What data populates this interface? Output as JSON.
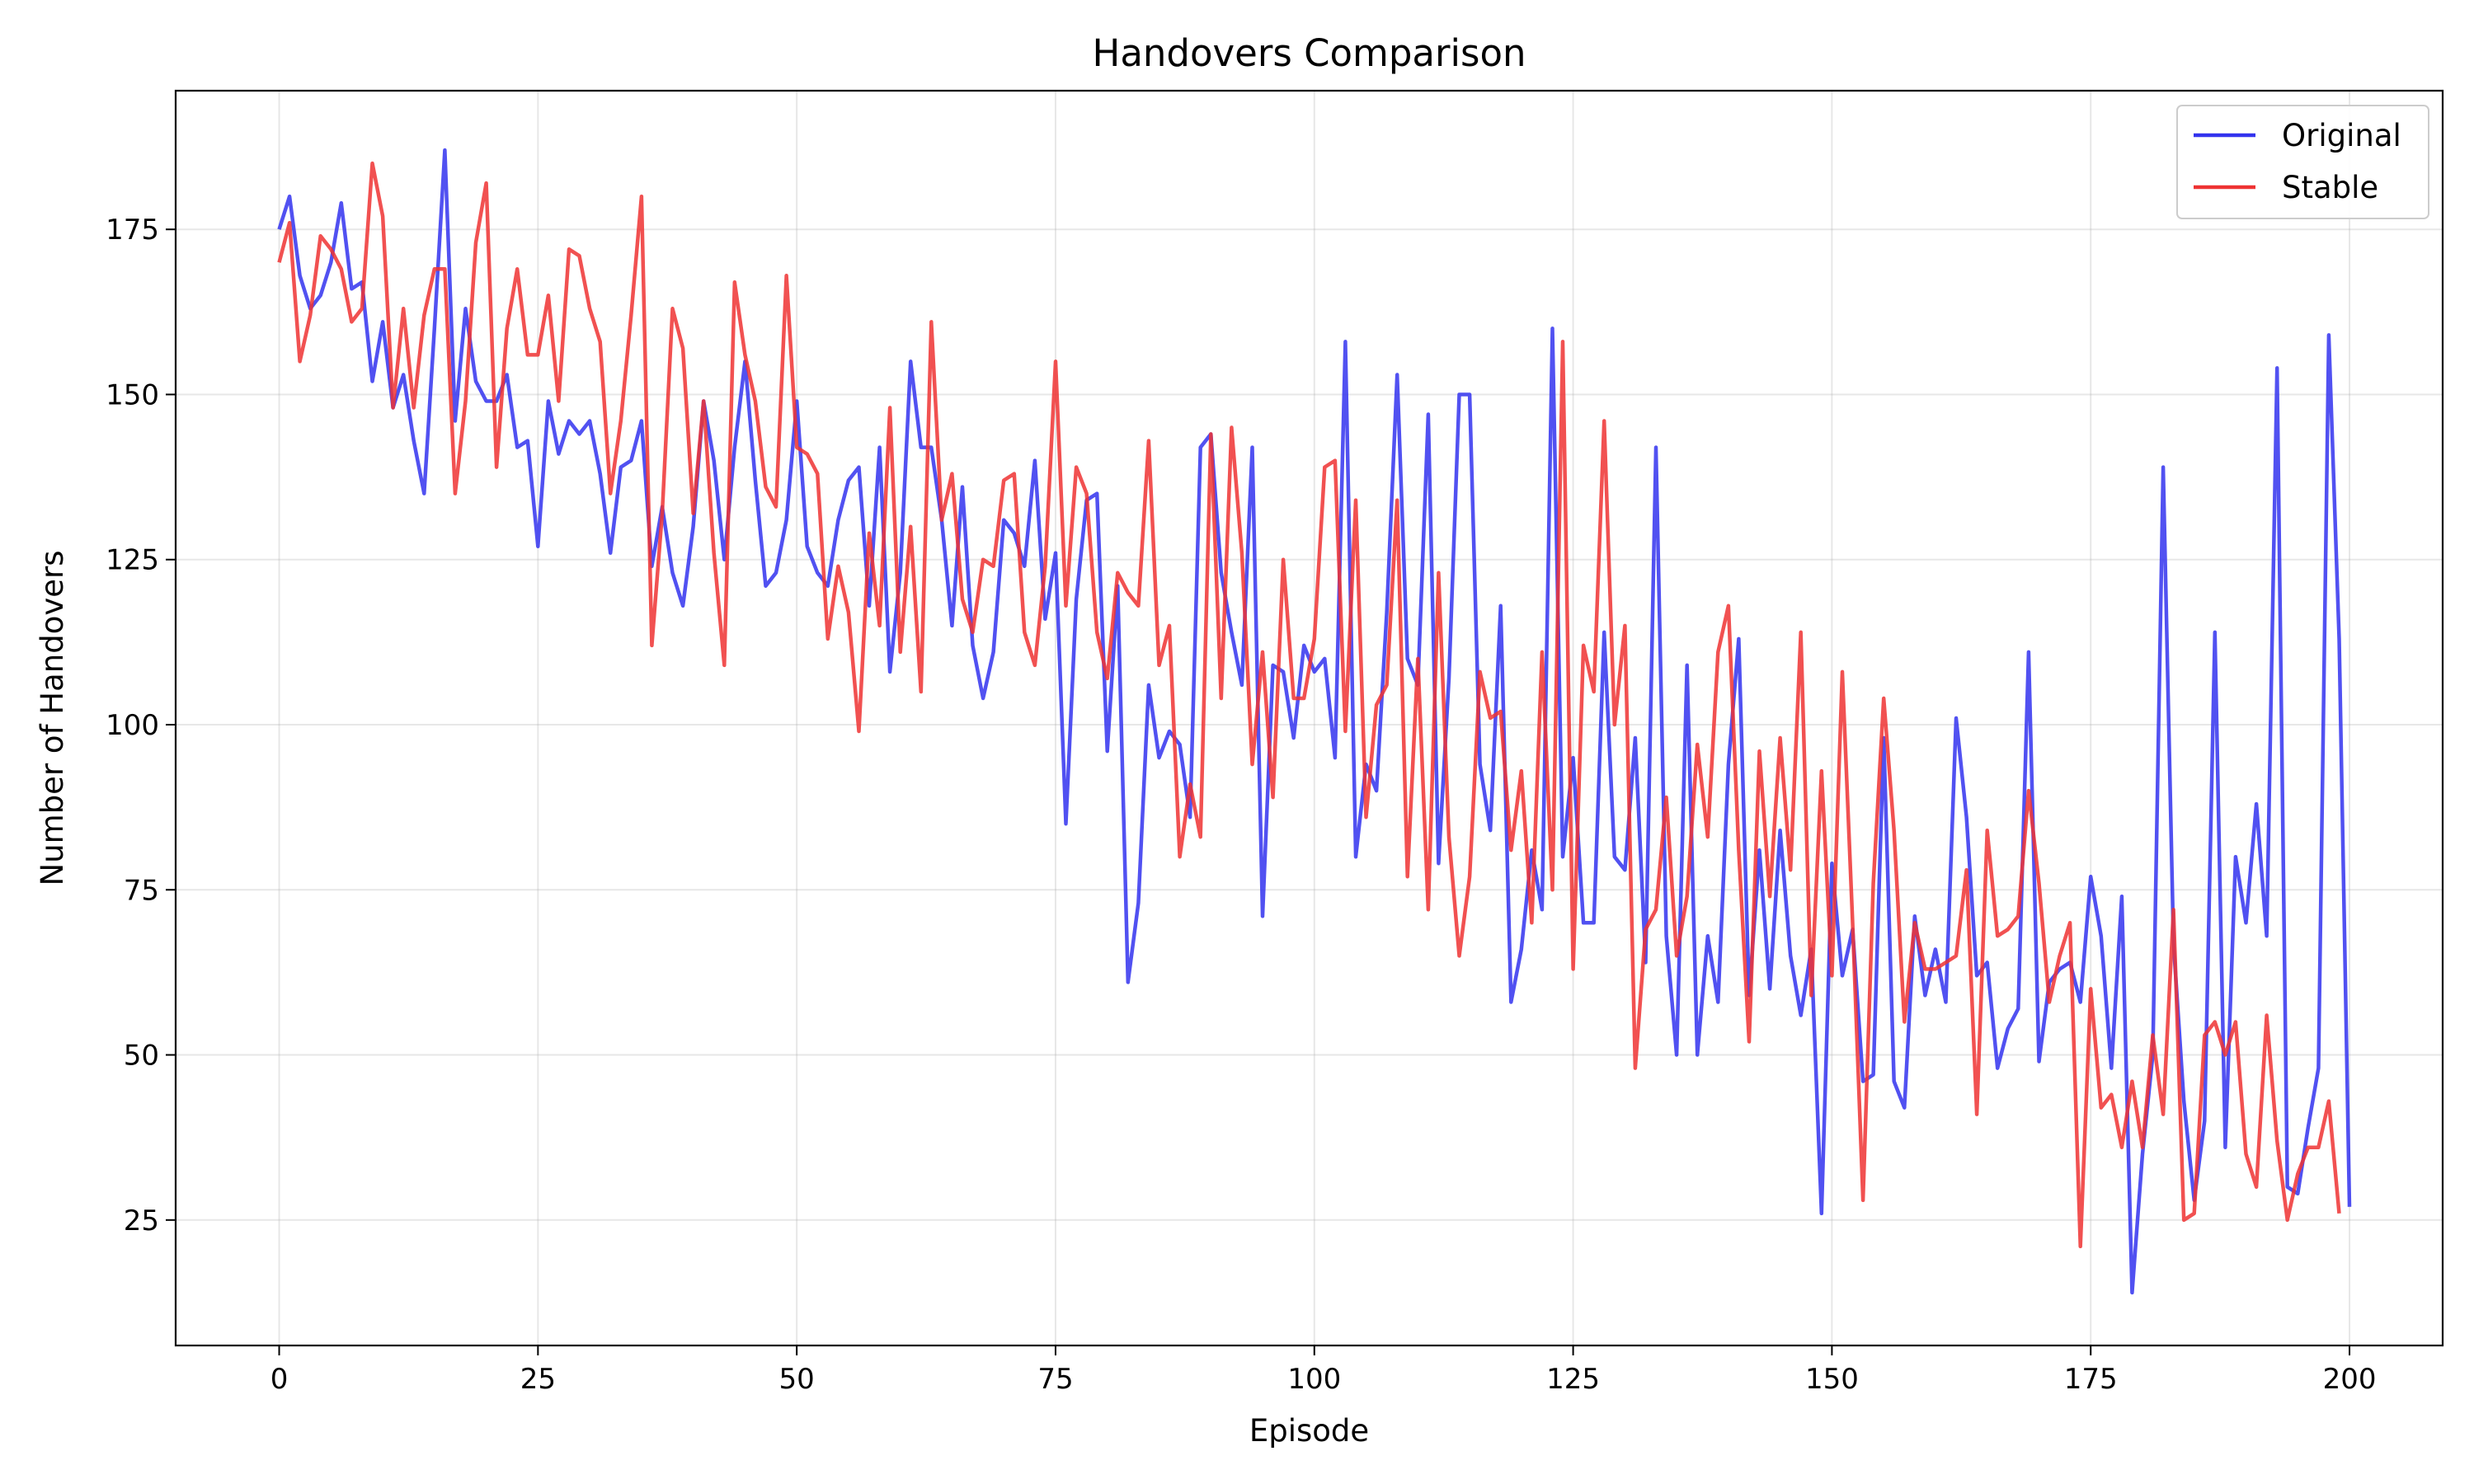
{
  "chart_data": {
    "type": "line",
    "title": "Handovers Comparison",
    "xlabel": "Episode",
    "ylabel": "Number of Handovers",
    "xlim": [
      -10,
      209
    ],
    "ylim": [
      6,
      196
    ],
    "xticks": [
      0,
      25,
      50,
      75,
      100,
      125,
      150,
      175,
      200
    ],
    "yticks": [
      25,
      50,
      75,
      100,
      125,
      150,
      175
    ],
    "grid": true,
    "legend_position": "top-right",
    "series": [
      {
        "name": "Original",
        "color": "#3333ee",
        "values": [
          175,
          180,
          168,
          163,
          165,
          170,
          179,
          166,
          167,
          152,
          161,
          148,
          153,
          143,
          135,
          160,
          187,
          146,
          163,
          152,
          149,
          149,
          153,
          142,
          143,
          127,
          149,
          141,
          146,
          144,
          146,
          138,
          126,
          139,
          140,
          146,
          124,
          133,
          123,
          118,
          130,
          149,
          140,
          125,
          142,
          155,
          137,
          121,
          123,
          131,
          149,
          127,
          123,
          121,
          131,
          137,
          139,
          118,
          142,
          108,
          123,
          155,
          142,
          142,
          131,
          115,
          136,
          112,
          104,
          111,
          131,
          129,
          124,
          140,
          116,
          126,
          85,
          119,
          134,
          135,
          96,
          121,
          61,
          73,
          106,
          95,
          99,
          97,
          86,
          142,
          144,
          123,
          114,
          106,
          142,
          71,
          109,
          108,
          98,
          112,
          108,
          110,
          95,
          158,
          80,
          94,
          90,
          117,
          153,
          110,
          106,
          147,
          79,
          107,
          150,
          150,
          94,
          84,
          118,
          58,
          66,
          81,
          72,
          160,
          80,
          95,
          70,
          70,
          114,
          80,
          78,
          98,
          64,
          142,
          68,
          50,
          109,
          50,
          68,
          58,
          94,
          113,
          59,
          81,
          60,
          84,
          65,
          56,
          66,
          26,
          79,
          62,
          69,
          46,
          47,
          98,
          46,
          42,
          71,
          59,
          66,
          58,
          101,
          86,
          62,
          64,
          48,
          54,
          57,
          111,
          49,
          61,
          63,
          64,
          58,
          77,
          68,
          48,
          74,
          14,
          35,
          50,
          139,
          67,
          43,
          28,
          40,
          114,
          36,
          80,
          70,
          88,
          68,
          154,
          30,
          29,
          39,
          48,
          159,
          113,
          27
        ]
      },
      {
        "name": "Stable",
        "color": "#ee3333",
        "values": [
          170,
          176,
          155,
          162,
          174,
          172,
          169,
          161,
          163,
          185,
          177,
          148,
          163,
          148,
          162,
          169,
          169,
          135,
          149,
          173,
          182,
          139,
          160,
          169,
          156,
          156,
          165,
          149,
          172,
          171,
          163,
          158,
          135,
          146,
          162,
          180,
          112,
          132,
          163,
          157,
          132,
          149,
          126,
          109,
          167,
          156,
          149,
          136,
          133,
          168,
          142,
          141,
          138,
          113,
          124,
          117,
          99,
          129,
          115,
          148,
          111,
          130,
          105,
          161,
          131,
          138,
          119,
          114,
          125,
          124,
          137,
          138,
          114,
          109,
          124,
          155,
          118,
          139,
          135,
          114,
          107,
          123,
          120,
          118,
          143,
          109,
          115,
          80,
          91,
          83,
          144,
          104,
          145,
          126,
          94,
          111,
          89,
          125,
          104,
          104,
          113,
          139,
          140,
          99,
          134,
          86,
          103,
          106,
          134,
          77,
          110,
          72,
          123,
          83,
          65,
          77,
          108,
          101,
          102,
          81,
          93,
          70,
          111,
          75,
          158,
          63,
          112,
          105,
          146,
          100,
          115,
          48,
          69,
          72,
          89,
          65,
          74,
          97,
          83,
          111,
          118,
          81,
          52,
          96,
          74,
          98,
          78,
          114,
          59,
          93,
          62,
          108,
          70,
          28,
          76,
          104,
          84,
          55,
          70,
          63,
          63,
          64,
          65,
          78,
          41,
          84,
          68,
          69,
          71,
          90,
          76,
          58,
          65,
          70,
          21,
          60,
          42,
          44,
          36,
          46,
          36,
          53,
          41,
          72,
          25,
          26,
          53,
          55,
          50,
          55,
          35,
          30,
          56,
          37,
          25,
          32,
          36,
          36,
          43,
          26
        ]
      }
    ]
  }
}
